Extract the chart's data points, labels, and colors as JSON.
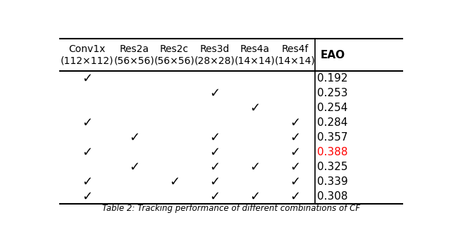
{
  "col_headers": [
    "Conv1x\n(112×112)",
    "Res2a\n(56×56)",
    "Res2c\n(56×56)",
    "Res3d\n(28×28)",
    "Res4a\n(14×14)",
    "Res4f\n(14×14)",
    "EAO"
  ],
  "rows": [
    [
      1,
      0,
      0,
      0,
      0,
      0,
      "0.192",
      false
    ],
    [
      0,
      0,
      0,
      1,
      0,
      0,
      "0.253",
      false
    ],
    [
      0,
      0,
      0,
      0,
      1,
      0,
      "0.254",
      false
    ],
    [
      1,
      0,
      0,
      0,
      0,
      1,
      "0.284",
      false
    ],
    [
      0,
      1,
      0,
      1,
      0,
      1,
      "0.357",
      false
    ],
    [
      1,
      0,
      0,
      1,
      0,
      1,
      "0.388",
      true
    ],
    [
      0,
      1,
      0,
      1,
      1,
      1,
      "0.325",
      false
    ],
    [
      1,
      0,
      1,
      1,
      0,
      1,
      "0.339",
      false
    ],
    [
      1,
      0,
      0,
      1,
      1,
      1,
      "0.308",
      false
    ]
  ],
  "checkmark": "✓",
  "highlight_color": "#ff0000",
  "normal_color": "#000000",
  "bg_color": "#ffffff"
}
